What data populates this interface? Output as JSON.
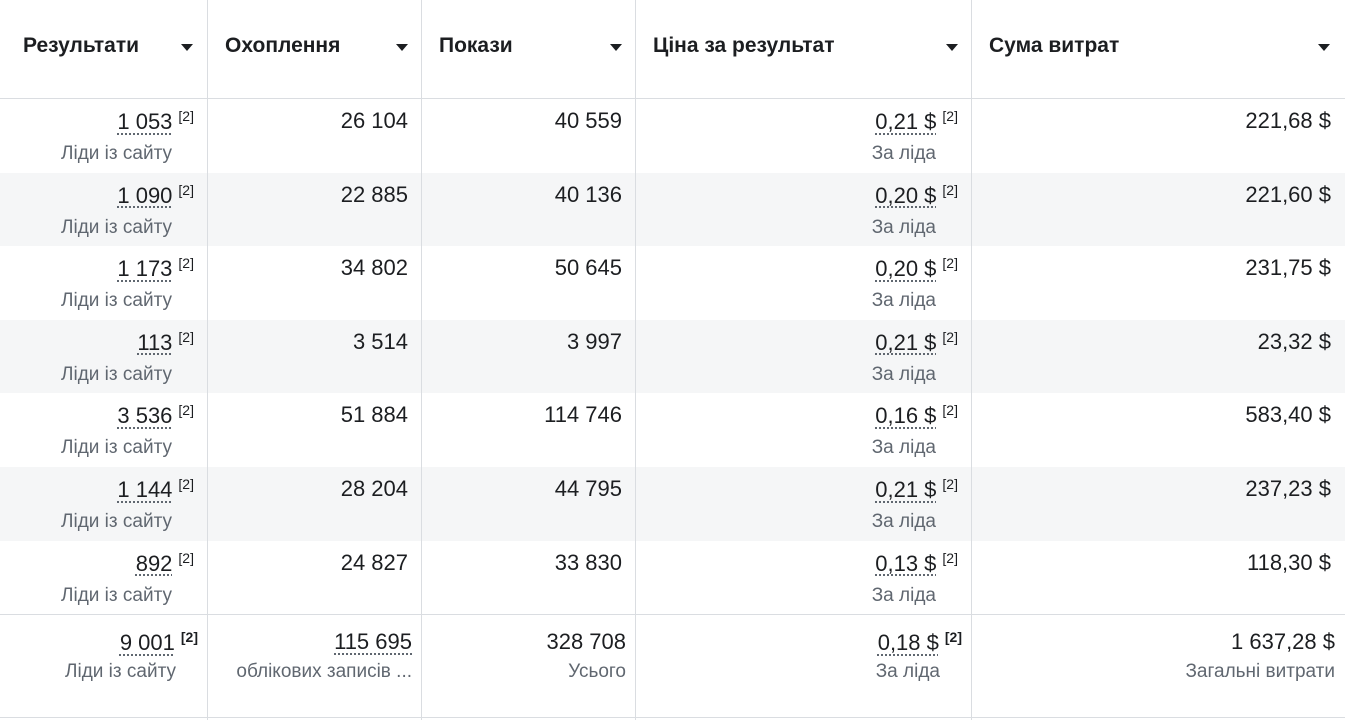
{
  "columns": [
    {
      "label": "Результати"
    },
    {
      "label": "Охоплення"
    },
    {
      "label": "Покази"
    },
    {
      "label": "Ціна за результат"
    },
    {
      "label": "Сума витрат"
    }
  ],
  "footnote_marker": "[2]",
  "rows": [
    {
      "results": "1 053",
      "results_sub": "Ліди із сайту",
      "reach": "26 104",
      "impressions": "40 559",
      "cpr": "0,21 $",
      "cpr_sub": "За ліда",
      "spend": "221,68 $"
    },
    {
      "results": "1 090",
      "results_sub": "Ліди із сайту",
      "reach": "22 885",
      "impressions": "40 136",
      "cpr": "0,20 $",
      "cpr_sub": "За ліда",
      "spend": "221,60 $"
    },
    {
      "results": "1 173",
      "results_sub": "Ліди із сайту",
      "reach": "34 802",
      "impressions": "50 645",
      "cpr": "0,20 $",
      "cpr_sub": "За ліда",
      "spend": "231,75 $"
    },
    {
      "results": "113",
      "results_sub": "Ліди із сайту",
      "reach": "3 514",
      "impressions": "3 997",
      "cpr": "0,21 $",
      "cpr_sub": "За ліда",
      "spend": "23,32 $"
    },
    {
      "results": "3 536",
      "results_sub": "Ліди із сайту",
      "reach": "51 884",
      "impressions": "114 746",
      "cpr": "0,16 $",
      "cpr_sub": "За ліда",
      "spend": "583,40 $"
    },
    {
      "results": "1 144",
      "results_sub": "Ліди із сайту",
      "reach": "28 204",
      "impressions": "44 795",
      "cpr": "0,21 $",
      "cpr_sub": "За ліда",
      "spend": "237,23 $"
    },
    {
      "results": "892",
      "results_sub": "Ліди із сайту",
      "reach": "24 827",
      "impressions": "33 830",
      "cpr": "0,13 $",
      "cpr_sub": "За ліда",
      "spend": "118,30 $"
    }
  ],
  "totals": {
    "results": "9 001",
    "results_sub": "Ліди із сайту",
    "reach": "115 695",
    "reach_sub": "облікових записів ...",
    "impressions": "328 708",
    "impressions_sub": "Усього",
    "cpr": "0,18 $",
    "cpr_sub": "За ліда",
    "spend": "1 637,28 $",
    "spend_sub": "Загальні витрати"
  }
}
